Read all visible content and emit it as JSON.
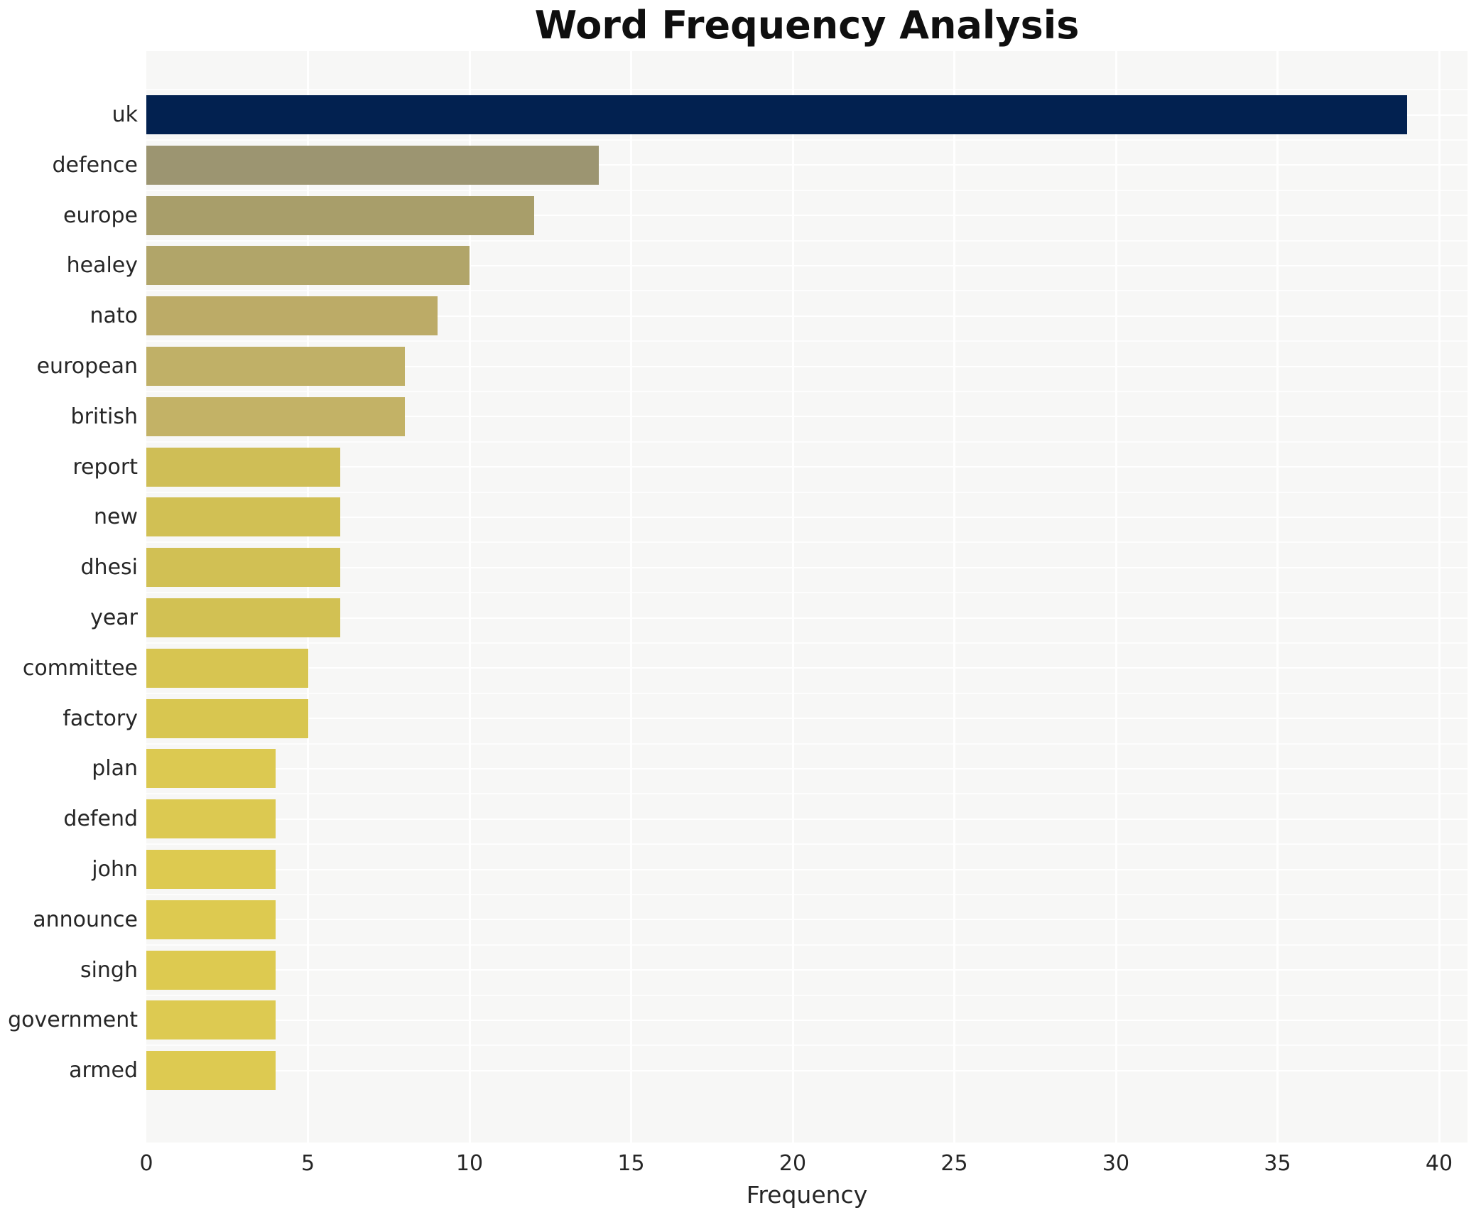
{
  "figure": {
    "title": "Word Frequency Analysis"
  },
  "chart_data": {
    "type": "bar",
    "orientation": "horizontal",
    "title": "Word Frequency Analysis",
    "xlabel": "Frequency",
    "ylabel": "",
    "xlim": [
      0,
      40.9
    ],
    "x_ticks": [
      0,
      5,
      10,
      15,
      20,
      25,
      30,
      35,
      40
    ],
    "grid": true,
    "legend_position": "none",
    "plot_background": "#f7f7f6",
    "grid_color": "#ffffff",
    "text_color": "#262626",
    "categories": [
      "uk",
      "defence",
      "europe",
      "healey",
      "nato",
      "european",
      "british",
      "report",
      "new",
      "dhesi",
      "year",
      "committee",
      "factory",
      "plan",
      "defend",
      "john",
      "announce",
      "singh",
      "government",
      "armed"
    ],
    "values": [
      39,
      14,
      12,
      10,
      9,
      8,
      8,
      6,
      6,
      6,
      6,
      5,
      5,
      4,
      4,
      4,
      4,
      4,
      4,
      4
    ],
    "bar_colors": [
      "#022150",
      "#9c9571",
      "#a89e6a",
      "#b1a569",
      "#bcab67",
      "#c0b067",
      "#c3b266",
      "#cfbe56",
      "#d1c054",
      "#d1c054",
      "#d2c153",
      "#d7c551",
      "#d8c650",
      "#dcc951",
      "#dcc951",
      "#ddca50",
      "#ddca50",
      "#ddca50",
      "#ddca51",
      "#ddca51"
    ]
  }
}
